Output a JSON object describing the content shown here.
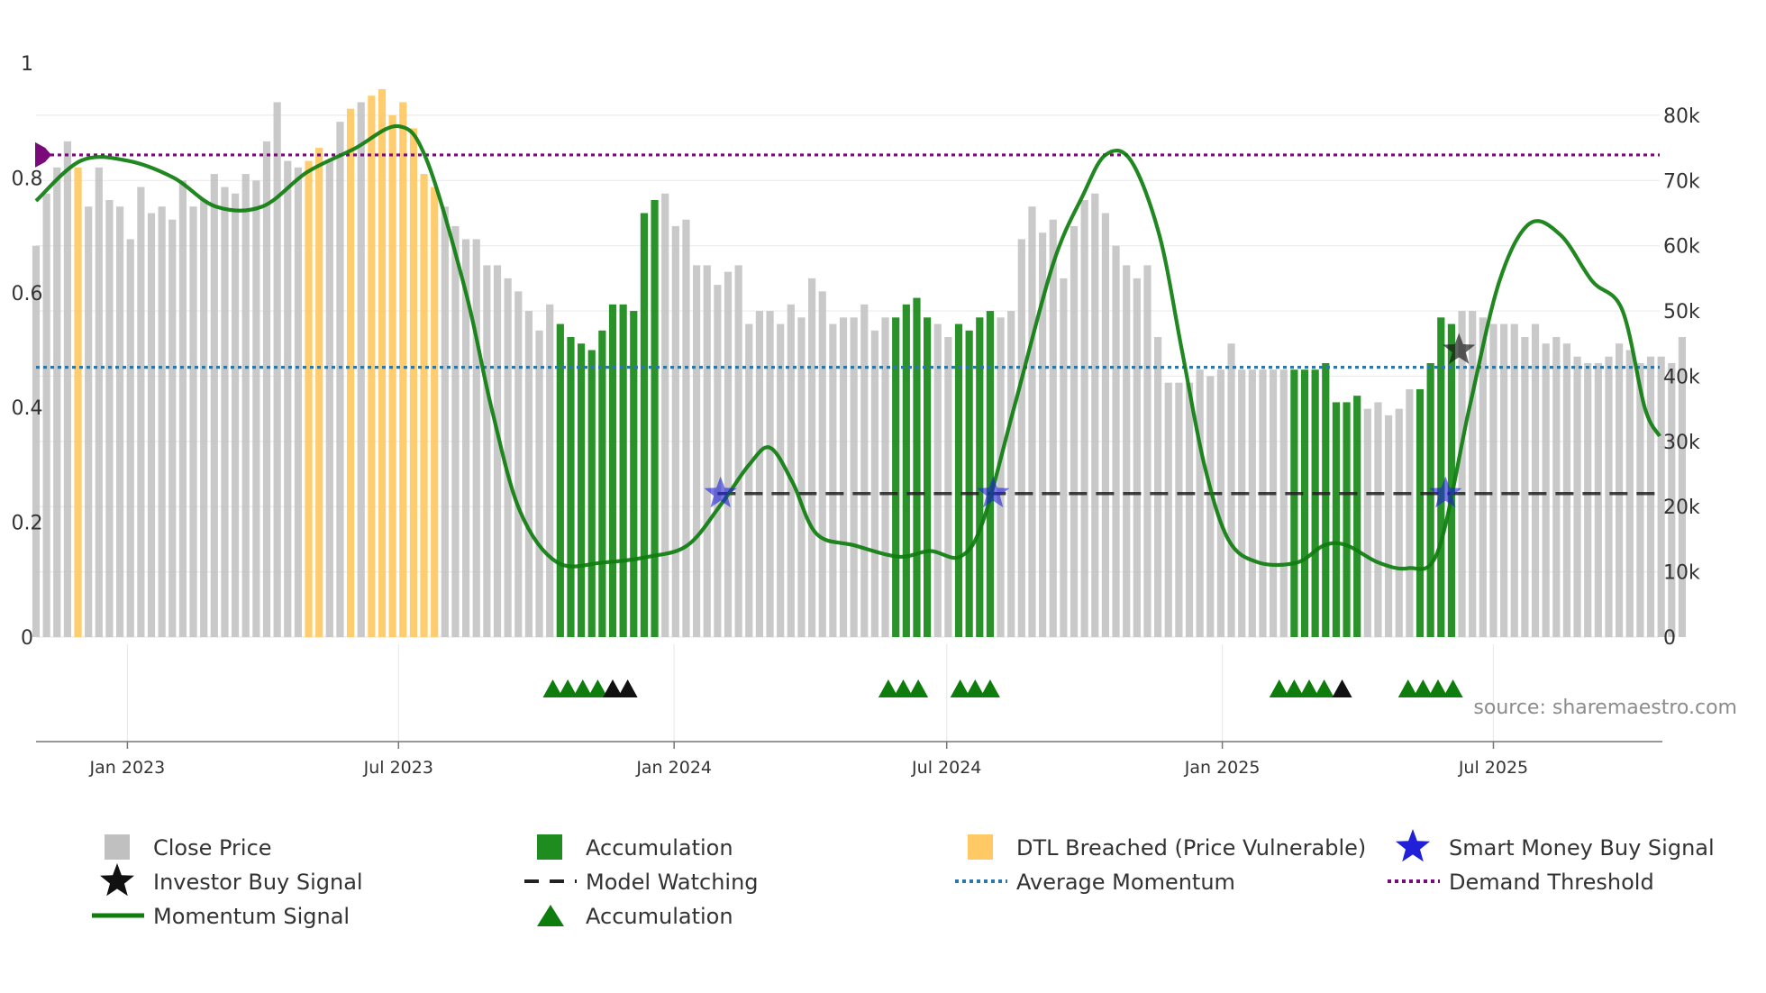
{
  "chart_data": {
    "type": "bar",
    "title": "",
    "source": "source: sharemaestro.com",
    "left_axis": {
      "min": 0,
      "max": 1,
      "ticks": [
        0,
        0.2,
        0.4,
        0.6,
        0.8,
        1
      ],
      "tick_labels": [
        "0",
        "0.2",
        "0.4",
        "0.6",
        "0.8",
        "1"
      ]
    },
    "right_axis": {
      "min": 0,
      "max": 88000,
      "ticks": [
        0,
        10000,
        20000,
        30000,
        40000,
        50000,
        60000,
        70000,
        80000
      ],
      "tick_labels": [
        "0",
        "10k",
        "20k",
        "30k",
        "40k",
        "50k",
        "60k",
        "70k",
        "80k"
      ]
    },
    "x_axis": {
      "start": "2022-11-01",
      "end": "2025-10-20",
      "ticks": [
        {
          "date": "2023-01-01",
          "label": "Jan 2023"
        },
        {
          "date": "2023-07-01",
          "label": "Jul 2023"
        },
        {
          "date": "2024-01-01",
          "label": "Jan 2024"
        },
        {
          "date": "2024-07-01",
          "label": "Jul 2024"
        },
        {
          "date": "2025-01-01",
          "label": "Jan 2025"
        },
        {
          "date": "2025-07-01",
          "label": "Jul 2025"
        }
      ]
    },
    "colors": {
      "close": "#c0c0c0",
      "accumulation": "#1e8c1e",
      "dtl": "#ffc966",
      "momentum": "#0e7d0e",
      "average": "#2a77a8",
      "threshold": "#7a0a7a",
      "watching": "#222222",
      "smart": "#2020d8",
      "investor": "#111111",
      "marker_accum": "#0e7d0e"
    },
    "close_price": {
      "start": "2022-11-01",
      "step_days": 7,
      "values": [
        60000,
        68000,
        72000,
        76000,
        72000,
        66000,
        72000,
        67000,
        66000,
        61000,
        69000,
        65000,
        66000,
        64000,
        70000,
        66000,
        67000,
        71000,
        69000,
        68000,
        71000,
        70000,
        76000,
        82000,
        73000,
        72000,
        73000,
        75000,
        73000,
        79000,
        81000,
        82000,
        83000,
        84000,
        80000,
        82000,
        78000,
        71000,
        69000,
        66000,
        63000,
        61000,
        61000,
        57000,
        57000,
        55000,
        53000,
        50000,
        47000,
        51000,
        48000,
        46000,
        45000,
        44000,
        47000,
        51000,
        51000,
        50000,
        65000,
        67000,
        68000,
        63000,
        64000,
        57000,
        57000,
        54000,
        56000,
        57000,
        48000,
        50000,
        50000,
        48000,
        51000,
        49000,
        55000,
        53000,
        48000,
        49000,
        49000,
        51000,
        47000,
        49000,
        49000,
        51000,
        52000,
        49000,
        48000,
        46000,
        48000,
        47000,
        49000,
        50000,
        49000,
        50000,
        61000,
        66000,
        62000,
        64000,
        55000,
        63000,
        67000,
        68000,
        65000,
        60000,
        57000,
        55000,
        57000,
        46000,
        39000,
        39000,
        39000,
        41000,
        40000,
        41000,
        45000,
        41000,
        41000,
        41000,
        41000,
        41000,
        41000,
        41000,
        41000,
        42000,
        36000,
        36000,
        37000,
        35000,
        36000,
        34000,
        35000,
        38000,
        38000,
        42000,
        49000,
        48000,
        50000,
        50000,
        49000,
        48000,
        48000,
        48000,
        46000,
        48000,
        45000,
        46000,
        45000,
        43000,
        42000,
        42000,
        43000,
        45000,
        44000,
        42000,
        43000,
        43000,
        42000,
        46000
      ]
    },
    "bar_types": [
      {
        "type": "accumulation",
        "from": "2023-10-12",
        "to": "2023-12-22"
      },
      {
        "type": "accumulation",
        "from": "2024-05-23",
        "to": "2024-06-20"
      },
      {
        "type": "accumulation",
        "from": "2024-07-04",
        "to": "2024-08-01"
      },
      {
        "type": "accumulation",
        "from": "2025-02-13",
        "to": "2025-04-03"
      },
      {
        "type": "accumulation",
        "from": "2025-05-08",
        "to": "2025-06-05"
      },
      {
        "type": "dtl",
        "from": "2022-11-24",
        "to": "2022-12-01"
      },
      {
        "type": "dtl",
        "from": "2023-04-27",
        "to": "2023-05-11"
      },
      {
        "type": "dtl",
        "from": "2023-05-25",
        "to": "2023-06-01"
      },
      {
        "type": "dtl",
        "from": "2023-06-08",
        "to": "2023-07-27"
      }
    ],
    "momentum": {
      "points": [
        [
          "2022-11-01",
          0.76
        ],
        [
          "2022-12-01",
          0.83
        ],
        [
          "2023-01-01",
          0.83
        ],
        [
          "2023-02-01",
          0.8
        ],
        [
          "2023-03-01",
          0.75
        ],
        [
          "2023-04-01",
          0.75
        ],
        [
          "2023-05-01",
          0.81
        ],
        [
          "2023-06-01",
          0.85
        ],
        [
          "2023-07-01",
          0.89
        ],
        [
          "2023-07-20",
          0.83
        ],
        [
          "2023-08-15",
          0.6
        ],
        [
          "2023-09-01",
          0.4
        ],
        [
          "2023-09-20",
          0.22
        ],
        [
          "2023-10-15",
          0.13
        ],
        [
          "2023-11-15",
          0.13
        ],
        [
          "2023-12-15",
          0.14
        ],
        [
          "2024-01-10",
          0.16
        ],
        [
          "2024-02-01",
          0.23
        ],
        [
          "2024-02-20",
          0.3
        ],
        [
          "2024-03-05",
          0.33
        ],
        [
          "2024-03-20",
          0.27
        ],
        [
          "2024-04-05",
          0.18
        ],
        [
          "2024-04-30",
          0.16
        ],
        [
          "2024-05-30",
          0.14
        ],
        [
          "2024-06-20",
          0.15
        ],
        [
          "2024-07-10",
          0.14
        ],
        [
          "2024-07-25",
          0.2
        ],
        [
          "2024-08-15",
          0.4
        ],
        [
          "2024-09-10",
          0.65
        ],
        [
          "2024-09-30",
          0.77
        ],
        [
          "2024-10-15",
          0.84
        ],
        [
          "2024-11-01",
          0.83
        ],
        [
          "2024-11-20",
          0.7
        ],
        [
          "2024-12-05",
          0.5
        ],
        [
          "2024-12-20",
          0.3
        ],
        [
          "2025-01-05",
          0.17
        ],
        [
          "2025-01-25",
          0.13
        ],
        [
          "2025-02-20",
          0.13
        ],
        [
          "2025-03-10",
          0.16
        ],
        [
          "2025-03-25",
          0.16
        ],
        [
          "2025-04-15",
          0.13
        ],
        [
          "2025-05-05",
          0.12
        ],
        [
          "2025-05-25",
          0.15
        ],
        [
          "2025-06-15",
          0.4
        ],
        [
          "2025-07-05",
          0.62
        ],
        [
          "2025-07-25",
          0.72
        ],
        [
          "2025-08-15",
          0.7
        ],
        [
          "2025-09-05",
          0.62
        ],
        [
          "2025-09-25",
          0.57
        ],
        [
          "2025-10-10",
          0.4
        ],
        [
          "2025-10-20",
          0.35
        ]
      ]
    },
    "average_momentum": 0.47,
    "demand_threshold": 0.84,
    "model_watching": {
      "from": "2024-01-30",
      "to": "2025-10-20",
      "value": 0.25
    },
    "smart_money_signals": [
      [
        "2024-02-01",
        0.25
      ],
      [
        "2024-08-01",
        0.25
      ],
      [
        "2025-05-30",
        0.25
      ]
    ],
    "investor_signals": [
      [
        "2025-06-08",
        0.5
      ]
    ],
    "accumulation_markers": {
      "green": [
        "2023-10-12",
        "2023-10-22",
        "2023-11-01",
        "2023-11-11",
        "2024-05-23",
        "2024-06-02",
        "2024-06-12",
        "2024-07-10",
        "2024-07-20",
        "2024-07-30",
        "2025-02-08",
        "2025-02-18",
        "2025-02-28",
        "2025-03-10",
        "2025-05-05",
        "2025-05-15",
        "2025-05-25",
        "2025-06-04"
      ],
      "black": [
        "2023-11-21",
        "2023-12-01",
        "2025-03-22"
      ]
    },
    "legend": [
      {
        "key": "close",
        "label": "Close Price",
        "symbol": "square"
      },
      {
        "key": "investor",
        "label": "Investor Buy Signal",
        "symbol": "star"
      },
      {
        "key": "momentum",
        "label": "Momentum Signal",
        "symbol": "line"
      },
      {
        "key": "accumulation",
        "label": "Accumulation",
        "symbol": "square"
      },
      {
        "key": "watching",
        "label": "Model Watching",
        "symbol": "dash"
      },
      {
        "key": "marker_accum",
        "label": "Accumulation",
        "symbol": "triangle"
      },
      {
        "key": "dtl",
        "label": "DTL Breached (Price Vulnerable)",
        "symbol": "square"
      },
      {
        "key": "average",
        "label": "Average Momentum",
        "symbol": "dot"
      },
      {
        "key": "smart",
        "label": "Smart Money Buy Signal",
        "symbol": "star"
      },
      {
        "key": "threshold",
        "label": "Demand Threshold",
        "symbol": "dot"
      }
    ]
  }
}
